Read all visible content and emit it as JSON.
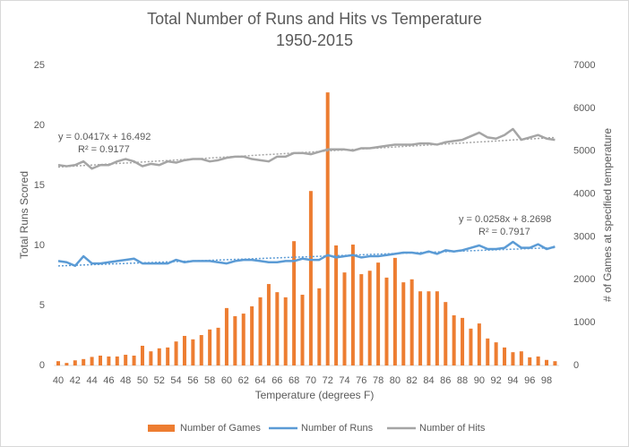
{
  "chart_data": {
    "type": "combo",
    "title": "Total Number of Runs and Hits vs Temperature",
    "subtitle": "1950-2015",
    "x_label": "Temperature (degrees F)",
    "y_label": "Total Runs Scored",
    "y2_label": "# of Games at specified temperature",
    "categories": [
      40,
      null,
      42,
      null,
      44,
      null,
      46,
      null,
      48,
      null,
      50,
      null,
      52,
      null,
      54,
      null,
      56,
      null,
      58,
      null,
      60,
      null,
      62,
      null,
      64,
      null,
      66,
      null,
      68,
      null,
      70,
      null,
      72,
      null,
      74,
      null,
      76,
      null,
      78,
      null,
      80,
      null,
      82,
      null,
      84,
      null,
      86,
      null,
      88,
      null,
      90,
      null,
      92,
      null,
      94,
      null,
      96,
      null,
      98,
      null
    ],
    "ylim": [
      0,
      25
    ],
    "yticks": [
      0,
      5,
      10,
      15,
      20,
      25
    ],
    "y2lim": [
      0,
      7000
    ],
    "y2ticks": [
      0,
      1000,
      2000,
      3000,
      4000,
      5000,
      6000,
      7000
    ],
    "legend": "bottom",
    "series": [
      {
        "name": "Number of Games",
        "type": "bar",
        "axis": "y2",
        "color": "#ED7D31",
        "values": [
          100,
          60,
          120,
          150,
          200,
          230,
          210,
          210,
          250,
          230,
          460,
          330,
          400,
          420,
          560,
          690,
          610,
          710,
          840,
          880,
          1340,
          1150,
          1210,
          1380,
          1590,
          1900,
          1710,
          1590,
          2900,
          1650,
          4070,
          1800,
          6370,
          2800,
          2170,
          2820,
          2130,
          2210,
          2400,
          2050,
          2510,
          1940,
          2010,
          1730,
          1730,
          1730,
          1480,
          1170,
          1110,
          860,
          980,
          630,
          540,
          420,
          310,
          330,
          190,
          210,
          130,
          100
        ]
      },
      {
        "name": "Number of Runs",
        "type": "line",
        "color": "#5B9BD5",
        "values": [
          8.7,
          8.6,
          8.3,
          9.1,
          8.5,
          8.5,
          8.6,
          8.7,
          8.8,
          8.9,
          8.5,
          8.5,
          8.5,
          8.5,
          8.8,
          8.6,
          8.7,
          8.7,
          8.7,
          8.6,
          8.5,
          8.7,
          8.8,
          8.8,
          8.7,
          8.6,
          8.6,
          8.7,
          8.7,
          8.9,
          8.8,
          8.8,
          9.2,
          9.0,
          9.1,
          9.2,
          9.0,
          9.1,
          9.1,
          9.2,
          9.3,
          9.4,
          9.4,
          9.3,
          9.5,
          9.3,
          9.6,
          9.5,
          9.6,
          9.8,
          10.0,
          9.7,
          9.7,
          9.8,
          10.3,
          9.8,
          9.8,
          10.1,
          9.7,
          9.9
        ],
        "trendline": {
          "slope": 0.0258,
          "intercept": 8.2698,
          "equation": "y = 0.0258x + 8.2698",
          "r_squared": "R² = 0.7917"
        }
      },
      {
        "name": "Number of Hits",
        "type": "line",
        "color": "#A5A5A5",
        "values": [
          16.7,
          16.6,
          16.7,
          17.0,
          16.4,
          16.7,
          16.7,
          17.0,
          17.2,
          17.0,
          16.6,
          16.8,
          16.7,
          17.0,
          16.9,
          17.1,
          17.2,
          17.2,
          17.0,
          17.1,
          17.3,
          17.4,
          17.4,
          17.2,
          17.1,
          17.0,
          17.4,
          17.4,
          17.7,
          17.7,
          17.6,
          17.8,
          18.0,
          18.0,
          18.0,
          17.9,
          18.1,
          18.1,
          18.2,
          18.3,
          18.4,
          18.4,
          18.4,
          18.5,
          18.5,
          18.4,
          18.6,
          18.7,
          18.8,
          19.1,
          19.4,
          19.0,
          18.9,
          19.2,
          19.7,
          18.8,
          19.0,
          19.2,
          18.9,
          18.8
        ],
        "trendline": {
          "slope": 0.0417,
          "intercept": 16.492,
          "equation": "y = 0.0417x + 16.492",
          "r_squared": "R² = 0.9177"
        }
      }
    ]
  }
}
